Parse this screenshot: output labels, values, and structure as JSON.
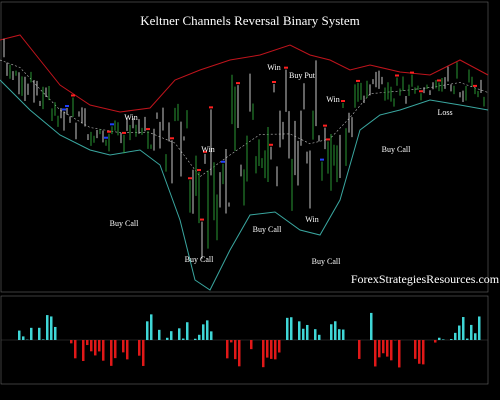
{
  "header": {
    "title": "Keltner Channels Reversal Binary System"
  },
  "annotations": [
    "Win",
    "Win",
    "Win",
    "Buy Put",
    "Win",
    "Buy Call",
    "Buy Call",
    "Buy Call",
    "Win",
    "Buy Call",
    "Buy Call",
    "Loss"
  ],
  "watermark": "ForexStrategiesResources.com"
}
